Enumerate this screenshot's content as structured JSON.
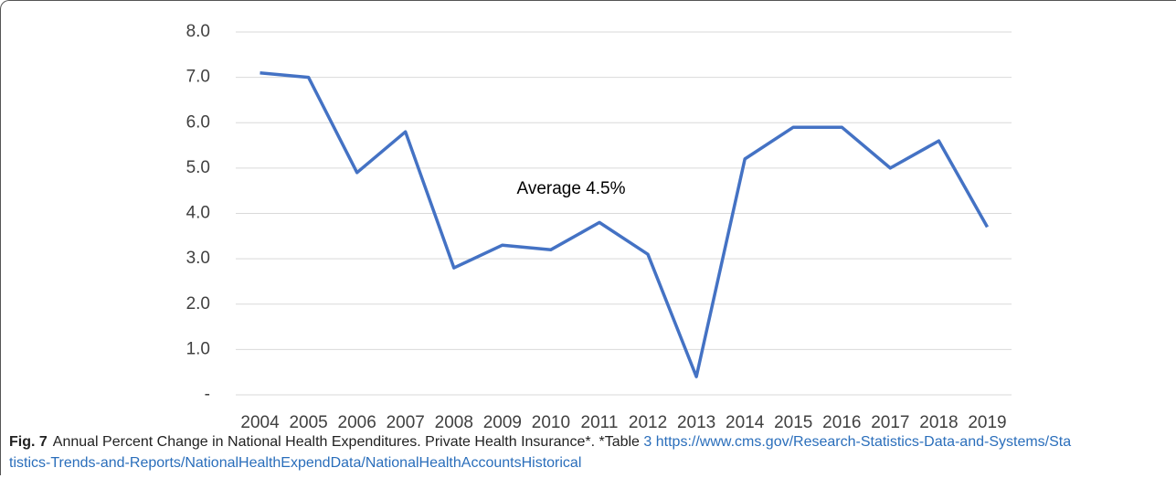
{
  "chart_data": {
    "type": "line",
    "categories": [
      "2004",
      "2005",
      "2006",
      "2007",
      "2008",
      "2009",
      "2010",
      "2011",
      "2012",
      "2013",
      "2014",
      "2015",
      "2016",
      "2017",
      "2018",
      "2019"
    ],
    "values": [
      7.1,
      7.0,
      4.9,
      5.8,
      2.8,
      3.3,
      3.2,
      3.8,
      3.1,
      0.4,
      5.2,
      5.9,
      5.9,
      5.0,
      5.6,
      3.7
    ],
    "color": "#4472c4",
    "ylim": [
      0,
      8
    ],
    "yticks": [
      {
        "value": 0,
        "label": "-"
      },
      {
        "value": 1,
        "label": "1.0"
      },
      {
        "value": 2,
        "label": "2.0"
      },
      {
        "value": 3,
        "label": "3.0"
      },
      {
        "value": 4,
        "label": "4.0"
      },
      {
        "value": 5,
        "label": "5.0"
      },
      {
        "value": 6,
        "label": "6.0"
      },
      {
        "value": 7,
        "label": "7.0"
      },
      {
        "value": 8,
        "label": "8.0"
      }
    ],
    "grid": true,
    "annotation": "Average 4.5%"
  },
  "caption": {
    "label": "Fig. 7",
    "text": "Annual Percent Change in National Health Expenditures. Private Health Insurance*. *Table",
    "table_ref": "3",
    "url": "https://www.cms.gov/Research-Statistics-Data-and-Systems/Statistics-Trends-and-Reports/NationalHealthExpendData/NationalHealthAccountsHistorical"
  }
}
